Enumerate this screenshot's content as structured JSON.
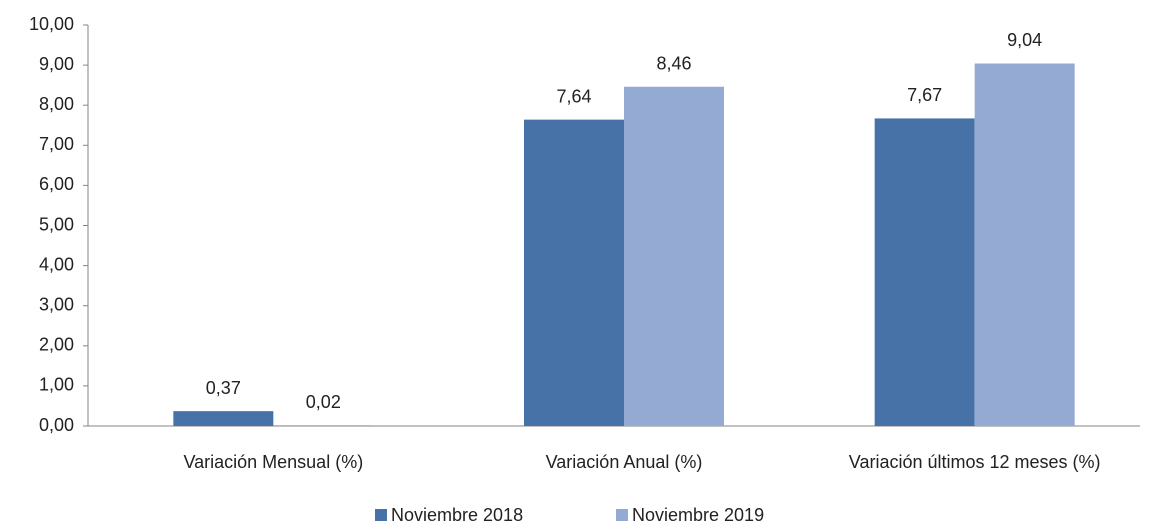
{
  "chart_data": {
    "type": "bar",
    "categories": [
      "Variación Mensual (%)",
      "Variación  Anual (%)",
      "Variación últimos 12 meses (%)"
    ],
    "series": [
      {
        "name": "Noviembre 2018",
        "color": "#4672a8",
        "values": [
          0.37,
          7.64,
          7.67
        ],
        "value_labels": [
          "0,37",
          "7,64",
          "7,67"
        ]
      },
      {
        "name": "Noviembre 2019",
        "color": "#95aad2",
        "values": [
          0.02,
          8.46,
          9.04
        ],
        "value_labels": [
          "0,02",
          "8,46",
          "9,04"
        ]
      }
    ],
    "ylim": [
      0,
      10
    ],
    "yticks": [
      {
        "value": 0,
        "label": "0,00"
      },
      {
        "value": 1,
        "label": "1,00"
      },
      {
        "value": 2,
        "label": "2,00"
      },
      {
        "value": 3,
        "label": "3,00"
      },
      {
        "value": 4,
        "label": "4,00"
      },
      {
        "value": 5,
        "label": "5,00"
      },
      {
        "value": 6,
        "label": "6,00"
      },
      {
        "value": 7,
        "label": "7,00"
      },
      {
        "value": 8,
        "label": "8,00"
      },
      {
        "value": 9,
        "label": "9,00"
      },
      {
        "value": 10,
        "label": "10,00"
      }
    ],
    "grid": false,
    "legend": "bottom"
  }
}
